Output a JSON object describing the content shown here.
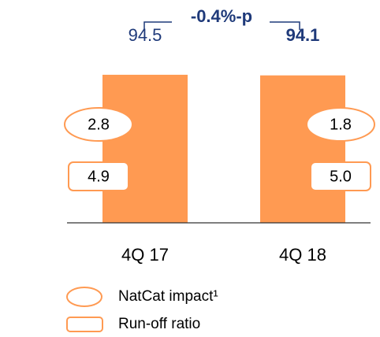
{
  "chart_data": {
    "type": "bar",
    "annotation": "-0.4%-p",
    "categories": [
      "4Q 17",
      "4Q 18"
    ],
    "values": [
      94.5,
      94.1
    ],
    "color": "#ff9a52",
    "ylim": [
      0,
      100
    ],
    "series": [
      {
        "name": "NatCat impact¹",
        "color": "#ff9a52",
        "shape": "ellipse",
        "values": [
          2.8,
          1.8
        ]
      },
      {
        "name": "Run-off ratio",
        "color": "#ff9a52",
        "shape": "rect",
        "values": [
          4.9,
          5.0
        ],
        "value_labels": [
          "4.9",
          "5.0"
        ]
      }
    ]
  }
}
